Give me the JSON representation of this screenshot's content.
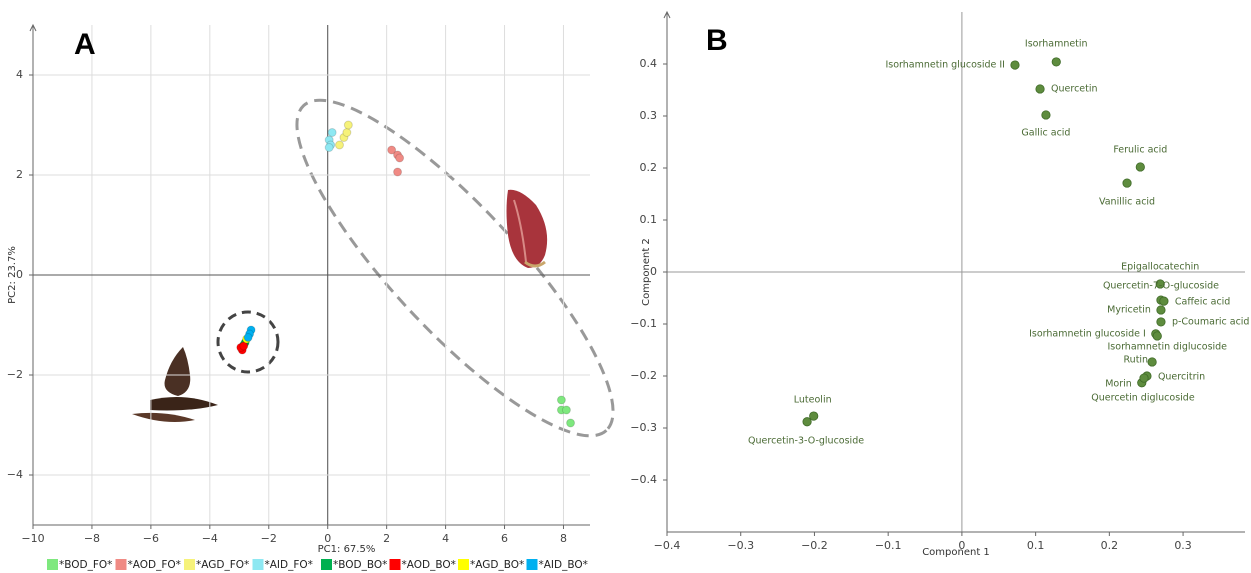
{
  "chart_data": [
    {
      "type": "scatter",
      "panel_label": "A",
      "x_label": "PC1: 67.5%",
      "y_label": "PC2: 23.7%",
      "grid": true,
      "xlim": [
        -10,
        8.9
      ],
      "ylim": [
        -5,
        5
      ],
      "xticks": [
        {
          "value": -10,
          "label": "−10"
        },
        {
          "value": -8,
          "label": "−8"
        },
        {
          "value": -6,
          "label": "−6"
        },
        {
          "value": -4,
          "label": "−4"
        },
        {
          "value": -2,
          "label": "−2"
        },
        0,
        2,
        4,
        6,
        8
      ],
      "yticks": [
        {
          "value": -4,
          "label": "−4"
        },
        {
          "value": -2,
          "label": "−2"
        },
        0,
        2,
        4
      ],
      "legend": "bottom",
      "series": [
        {
          "name": "*BOD_FO*",
          "color": "#7ee87e",
          "x": [
            7.93,
            7.93,
            8.1,
            8.24
          ],
          "values": [
            -2.5,
            -2.7,
            -2.7,
            -2.96
          ]
        },
        {
          "name": "*AOD_FO*",
          "color": "#f08a84",
          "x": [
            2.17,
            2.37,
            2.44,
            2.37
          ],
          "values": [
            2.5,
            2.4,
            2.34,
            2.06
          ]
        },
        {
          "name": "*AGD_FO*",
          "color": "#f6f27a",
          "x": [
            0.4,
            0.55,
            0.65,
            0.7
          ],
          "values": [
            2.6,
            2.75,
            2.85,
            3.0
          ]
        },
        {
          "name": "*AID_FO*",
          "color": "#8ee8f2",
          "x": [
            0.15,
            0.05,
            0.1,
            0.05
          ],
          "values": [
            2.85,
            2.7,
            2.6,
            2.55
          ]
        },
        {
          "name": "*BOD_BO*",
          "color": "#00b050",
          "x": [
            -2.8,
            -2.85
          ],
          "values": [
            -1.35,
            -1.4
          ]
        },
        {
          "name": "*AOD_BO*",
          "color": "#ff0000",
          "x": [
            -2.9,
            -2.95,
            -2.85
          ],
          "values": [
            -1.5,
            -1.45,
            -1.42
          ]
        },
        {
          "name": "*AGD_BO*",
          "color": "#ffff00",
          "x": [
            -2.75
          ],
          "values": [
            -1.28
          ]
        },
        {
          "name": "*AID_BO*",
          "color": "#00b0f0",
          "x": [
            -2.6,
            -2.65,
            -2.7
          ],
          "values": [
            -1.1,
            -1.18,
            -1.25
          ]
        }
      ]
    },
    {
      "type": "scatter",
      "panel_label": "B",
      "x_label": "Component 1",
      "y_label": "Component 2",
      "grid": false,
      "xlim": [
        -0.4,
        0.384
      ],
      "ylim": [
        -0.5,
        0.5
      ],
      "xticks": [
        {
          "value": -0.4,
          "label": "−0.4"
        },
        {
          "value": -0.3,
          "label": "−0.3"
        },
        {
          "value": -0.2,
          "label": "−0.2"
        },
        {
          "value": -0.1,
          "label": "−0.1"
        },
        0,
        0.1,
        0.2,
        0.3
      ],
      "yticks": [
        {
          "value": -0.4,
          "label": "−0.4"
        },
        {
          "value": -0.3,
          "label": "−0.3"
        },
        {
          "value": -0.2,
          "label": "−0.2"
        },
        {
          "value": -0.1,
          "label": "−0.1"
        },
        0,
        0.1,
        0.2,
        0.3,
        0.4
      ],
      "color": "#5e8c3e",
      "point_labels": [
        "Isorhamnetin",
        "Isorhamnetin glucoside II",
        "Quercetin",
        "Gallic acid",
        "Ferulic acid",
        "Vanillic acid",
        "Epigallocatechin",
        "Quercetin-7-O-glucoside",
        "Caffeic acid",
        "Myricetin",
        "p-Coumaric acid",
        "Isorhamnetin glucoside I",
        "Isorhamnetin diglucoside",
        "Rutin",
        "Quercitrin",
        "Morin",
        "Quercetin diglucoside",
        "Luteolin",
        "Quercetin-3-O-glucoside"
      ],
      "x": [
        0.128,
        0.072,
        0.106,
        0.114,
        0.242,
        0.224,
        0.269,
        0.27,
        0.274,
        0.27,
        0.27,
        0.263,
        0.265,
        0.258,
        0.251,
        0.244,
        0.247,
        -0.201,
        -0.21
      ],
      "values": [
        0.404,
        0.398,
        0.352,
        0.302,
        0.202,
        0.171,
        -0.023,
        -0.054,
        -0.056,
        -0.073,
        -0.096,
        -0.119,
        -0.123,
        -0.173,
        -0.2,
        -0.213,
        -0.204,
        -0.277,
        -0.288
      ]
    }
  ]
}
